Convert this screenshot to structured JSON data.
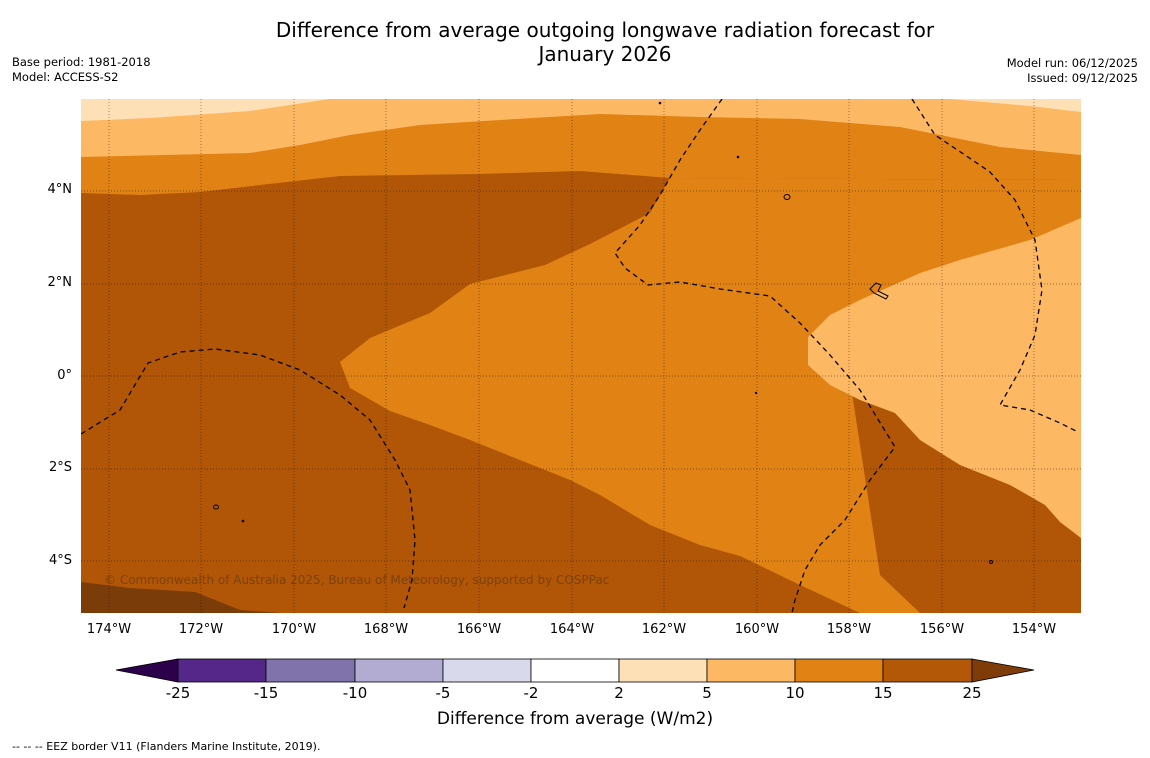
{
  "title": {
    "line1": "Difference from average outgoing longwave radiation forecast for",
    "line2": "January 2026"
  },
  "meta_left": {
    "base_period": "Base period: 1981-2018",
    "model": "Model: ACCESS-S2"
  },
  "meta_right": {
    "model_run": "Model run: 06/12/2025",
    "issued": "Issued: 09/12/2025"
  },
  "map": {
    "lat_labels": [
      "4°N",
      "2°N",
      "0°",
      "2°S",
      "4°S"
    ],
    "lon_labels": [
      "174°W",
      "172°W",
      "170°W",
      "168°W",
      "166°W",
      "164°W",
      "162°W",
      "160°W",
      "158°W",
      "156°W",
      "154°W"
    ],
    "copyright": "© Commonwealth of Australia 2025, Bureau of Meteorology, supported by COSPPac",
    "fill_colors": {
      "c_25_plus": "#7a3d0a",
      "c_15_25": "#b05606",
      "c_10_15": "#e08214",
      "c_5_10": "#fdb863",
      "c_2_5": "#fee0b6"
    }
  },
  "colorbar": {
    "tick_labels": [
      "-25",
      "-15",
      "-10",
      "-5",
      "-2",
      "2",
      "5",
      "10",
      "15",
      "25"
    ],
    "colors": [
      "#2d004b",
      "#542788",
      "#8073ac",
      "#b2abd2",
      "#d8daeb",
      "#ffffff",
      "#fee0b6",
      "#fdb863",
      "#e08214",
      "#b35806",
      "#7f3b08"
    ],
    "label": "Difference from average (W/m2)"
  },
  "legend_note": "--  --  -- EEZ border V11 (Flanders Marine Institute, 2019)."
}
